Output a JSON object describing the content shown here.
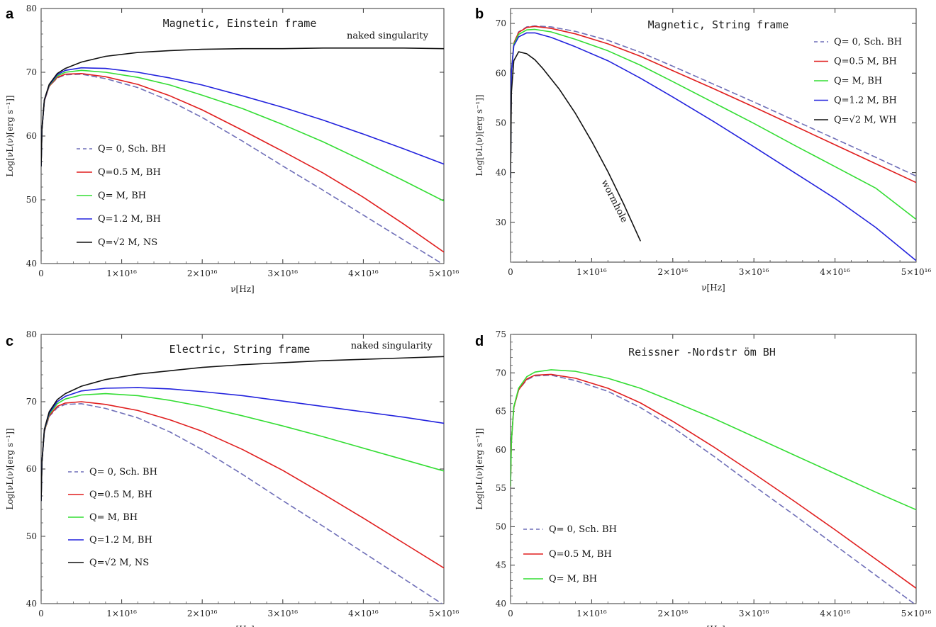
{
  "chart_data": [
    {
      "type": "line",
      "panel_label": "a",
      "title": "Magnetic, Einstein frame",
      "xlabel": "ν[Hz]",
      "ylabel": "Log[νL(ν)[erg s⁻¹]]",
      "xlim": [
        0,
        5e+16
      ],
      "ylim": [
        40,
        80
      ],
      "x_ticks": [
        0,
        1e+16,
        2e+16,
        3e+16,
        4e+16,
        5e+16
      ],
      "x_tick_labels": [
        "0",
        "1×10¹⁶",
        "2×10¹⁶",
        "3×10¹⁶",
        "4×10¹⁶",
        "5×10¹⁶"
      ],
      "y_ticks": [
        40,
        50,
        60,
        70,
        80
      ],
      "y_tick_labels": [
        "40",
        "50",
        "60",
        "70",
        "80"
      ],
      "legend_position": "lower-left",
      "annotations": [
        {
          "text": "naked singularity",
          "x": 4.3e+16,
          "y": 75.3,
          "rotate": 0
        }
      ],
      "series": [
        {
          "name": "Q= 0, Sch. BH",
          "color": "#6f6fb8",
          "dash": true,
          "x": [
            0,
            100000000000000.0,
            400000000000000.0,
            1000000000000000.0,
            2000000000000000.0,
            3000000000000000.0,
            5000000000000000.0,
            8000000000000000.0,
            1.2e+16,
            1.6e+16,
            2e+16,
            2.5e+16,
            3e+16,
            3.5e+16,
            4e+16,
            4.5e+16,
            5e+16
          ],
          "y": [
            55.3,
            61,
            65.5,
            67.8,
            69.1,
            69.6,
            69.7,
            69.0,
            67.6,
            65.5,
            62.9,
            59.2,
            55.3,
            51.5,
            47.6,
            43.7,
            39.8
          ]
        },
        {
          "name": "Q=0.5 M, BH",
          "color": "#e01e1e",
          "dash": false,
          "x": [
            0,
            100000000000000.0,
            400000000000000.0,
            1000000000000000.0,
            2000000000000000.0,
            3000000000000000.0,
            5000000000000000.0,
            8000000000000000.0,
            1.2e+16,
            1.6e+16,
            2e+16,
            2.5e+16,
            3e+16,
            3.5e+16,
            4e+16,
            4.5e+16,
            5e+16
          ],
          "y": [
            55.3,
            61,
            65.5,
            67.8,
            69.2,
            69.7,
            69.8,
            69.3,
            68.1,
            66.3,
            64.1,
            60.9,
            57.6,
            54.2,
            50.4,
            46.2,
            41.8
          ]
        },
        {
          "name": "Q= M, BH",
          "color": "#33dd33",
          "dash": false,
          "x": [
            0,
            100000000000000.0,
            400000000000000.0,
            1000000000000000.0,
            2000000000000000.0,
            3000000000000000.0,
            5000000000000000.0,
            8000000000000000.0,
            1.2e+16,
            1.6e+16,
            2e+16,
            2.5e+16,
            3e+16,
            3.5e+16,
            4e+16,
            4.5e+16,
            5e+16
          ],
          "y": [
            55.3,
            61,
            65.6,
            67.9,
            69.4,
            70.0,
            70.3,
            70.0,
            69.2,
            68.0,
            66.4,
            64.3,
            61.8,
            59.1,
            56.1,
            53.0,
            49.8
          ]
        },
        {
          "name": "Q=1.2 M, BH",
          "color": "#2222dd",
          "dash": false,
          "x": [
            0,
            100000000000000.0,
            400000000000000.0,
            1000000000000000.0,
            2000000000000000.0,
            3000000000000000.0,
            5000000000000000.0,
            8000000000000000.0,
            1.2e+16,
            1.6e+16,
            2e+16,
            2.5e+16,
            3e+16,
            3.5e+16,
            4e+16,
            4.5e+16,
            5e+16
          ],
          "y": [
            55.3,
            61,
            65.6,
            68.0,
            69.6,
            70.3,
            70.7,
            70.6,
            70.0,
            69.1,
            68.0,
            66.3,
            64.5,
            62.5,
            60.3,
            58.0,
            55.6
          ]
        },
        {
          "name": "Q=√2 M, NS",
          "color": "#111111",
          "dash": false,
          "x": [
            0,
            100000000000000.0,
            400000000000000.0,
            1000000000000000.0,
            2000000000000000.0,
            3000000000000000.0,
            5000000000000000.0,
            8000000000000000.0,
            1.2e+16,
            1.6e+16,
            2e+16,
            2.5e+16,
            3e+16,
            3.5e+16,
            4e+16,
            4.5e+16,
            5e+16
          ],
          "y": [
            55.3,
            61,
            65.7,
            68.1,
            69.8,
            70.6,
            71.6,
            72.5,
            73.1,
            73.4,
            73.6,
            73.7,
            73.7,
            73.8,
            73.8,
            73.8,
            73.7
          ]
        }
      ]
    },
    {
      "type": "line",
      "panel_label": "b",
      "title": "Magnetic, String frame",
      "xlabel": "ν[Hz]",
      "ylabel": "Log[νL(ν)[erg s⁻¹]]",
      "xlim": [
        0,
        5e+16
      ],
      "ylim": [
        22,
        73
      ],
      "x_ticks": [
        0,
        1e+16,
        2e+16,
        3e+16,
        4e+16,
        5e+16
      ],
      "x_tick_labels": [
        "0",
        "1×10¹⁶",
        "2×10¹⁶",
        "3×10¹⁶",
        "4×10¹⁶",
        "5×10¹⁶"
      ],
      "y_ticks": [
        30,
        40,
        50,
        60,
        70
      ],
      "y_tick_labels": [
        "30",
        "40",
        "50",
        "60",
        "70"
      ],
      "legend_position": "top-right",
      "annotations": [
        {
          "text": "wormhole",
          "x": 1.25e+16,
          "y": 34,
          "rotate": 63
        }
      ],
      "series": [
        {
          "name": "Q= 0, Sch. BH",
          "color": "#6f6fb8",
          "dash": true,
          "x": [
            0,
            100000000000000.0,
            400000000000000.0,
            1000000000000000.0,
            2000000000000000.0,
            3000000000000000.0,
            5000000000000000.0,
            8000000000000000.0,
            1.2e+16,
            1.6e+16,
            2e+16,
            2.5e+16,
            3e+16,
            3.5e+16,
            4e+16,
            4.5e+16,
            5e+16
          ],
          "y": [
            39,
            60,
            66,
            68.3,
            69.3,
            69.5,
            69.3,
            68.4,
            66.6,
            64.2,
            61.4,
            57.8,
            54.2,
            50.5,
            46.8,
            43.1,
            39.3
          ]
        },
        {
          "name": "Q=0.5 M, BH",
          "color": "#e01e1e",
          "dash": false,
          "x": [
            0,
            100000000000000.0,
            400000000000000.0,
            1000000000000000.0,
            2000000000000000.0,
            3000000000000000.0,
            5000000000000000.0,
            8000000000000000.0,
            1.2e+16,
            1.6e+16,
            2e+16,
            2.5e+16,
            3e+16,
            3.5e+16,
            4e+16,
            4.5e+16,
            5e+16
          ],
          "y": [
            39,
            60,
            66,
            68.2,
            69.2,
            69.4,
            69.0,
            67.9,
            65.9,
            63.4,
            60.5,
            56.9,
            53.2,
            49.4,
            45.6,
            41.8,
            38.0
          ]
        },
        {
          "name": "Q= M, BH",
          "color": "#33dd33",
          "dash": false,
          "x": [
            0,
            100000000000000.0,
            400000000000000.0,
            1000000000000000.0,
            2000000000000000.0,
            3000000000000000.0,
            5000000000000000.0,
            8000000000000000.0,
            1.2e+16,
            1.6e+16,
            2e+16,
            2.5e+16,
            3e+16,
            3.5e+16,
            4e+16,
            4.5e+16,
            5e+16
          ],
          "y": [
            39,
            60,
            65.8,
            67.8,
            68.7,
            68.8,
            68.3,
            66.8,
            64.5,
            61.6,
            58.3,
            54.1,
            49.9,
            45.5,
            41.2,
            36.9,
            30.6
          ]
        },
        {
          "name": "Q=1.2 M, BH",
          "color": "#2222dd",
          "dash": false,
          "x": [
            0,
            100000000000000.0,
            400000000000000.0,
            1000000000000000.0,
            2000000000000000.0,
            3000000000000000.0,
            5000000000000000.0,
            8000000000000000.0,
            1.2e+16,
            1.6e+16,
            2e+16,
            2.5e+16,
            3e+16,
            3.5e+16,
            4e+16,
            4.5e+16,
            5e+16
          ],
          "y": [
            39,
            60,
            65.5,
            67.3,
            68.1,
            68.1,
            67.2,
            65.3,
            62.5,
            59.0,
            55.2,
            50.3,
            45.2,
            40.0,
            34.8,
            29.0,
            22.3
          ]
        },
        {
          "name": "Q=√2 M, WH",
          "color": "#111111",
          "dash": false,
          "x": [
            0,
            100000000000000.0,
            400000000000000.0,
            1000000000000000.0,
            2000000000000000.0,
            3000000000000000.0,
            4000000000000000.0,
            6000000000000000.0,
            8000000000000000.0,
            1e+16,
            1.2e+16,
            1.4e+16,
            1.6e+16
          ],
          "y": [
            39,
            56,
            62.5,
            64.3,
            63.9,
            62.7,
            60.9,
            56.8,
            51.9,
            46.3,
            40.2,
            33.5,
            26.3
          ]
        }
      ]
    },
    {
      "type": "line",
      "panel_label": "c",
      "title": "Electric, String frame",
      "xlabel": "ν[Hz]",
      "ylabel": "Log[νL(ν)[erg s⁻¹]]",
      "xlim": [
        0,
        5e+16
      ],
      "ylim": [
        40,
        80
      ],
      "x_ticks": [
        0,
        1e+16,
        2e+16,
        3e+16,
        4e+16,
        5e+16
      ],
      "x_tick_labels": [
        "0",
        "1×10¹⁶",
        "2×10¹⁶",
        "3×10¹⁶",
        "4×10¹⁶",
        "5×10¹⁶"
      ],
      "y_ticks": [
        40,
        50,
        60,
        70,
        80
      ],
      "y_tick_labels": [
        "40",
        "50",
        "60",
        "70",
        "80"
      ],
      "legend_position": "lower-left",
      "annotations": [
        {
          "text": "naked singularity",
          "x": 4.35e+16,
          "y": 77.9,
          "rotate": 0
        }
      ],
      "series": [
        {
          "name": "Q= 0, Sch. BH",
          "color": "#6f6fb8",
          "dash": true,
          "x": [
            0,
            100000000000000.0,
            400000000000000.0,
            1000000000000000.0,
            2000000000000000.0,
            3000000000000000.0,
            5000000000000000.0,
            8000000000000000.0,
            1.2e+16,
            1.6e+16,
            2e+16,
            2.5e+16,
            3e+16,
            3.5e+16,
            4e+16,
            4.5e+16,
            5e+16
          ],
          "y": [
            55.3,
            61,
            65.5,
            67.8,
            69.1,
            69.6,
            69.7,
            69.0,
            67.6,
            65.5,
            62.9,
            59.2,
            55.3,
            51.5,
            47.6,
            43.7,
            39.8
          ]
        },
        {
          "name": "Q=0.5 M, BH",
          "color": "#e01e1e",
          "dash": false,
          "x": [
            0,
            100000000000000.0,
            400000000000000.0,
            1000000000000000.0,
            2000000000000000.0,
            3000000000000000.0,
            5000000000000000.0,
            8000000000000000.0,
            1.2e+16,
            1.6e+16,
            2e+16,
            2.5e+16,
            3e+16,
            3.5e+16,
            4e+16,
            4.5e+16,
            5e+16
          ],
          "y": [
            55.3,
            61,
            65.6,
            67.9,
            69.3,
            69.8,
            70.0,
            69.6,
            68.7,
            67.3,
            65.6,
            62.9,
            59.8,
            56.3,
            52.7,
            49.0,
            45.3
          ]
        },
        {
          "name": "Q= M, BH",
          "color": "#33dd33",
          "dash": false,
          "x": [
            0,
            100000000000000.0,
            400000000000000.0,
            1000000000000000.0,
            2000000000000000.0,
            3000000000000000.0,
            5000000000000000.0,
            8000000000000000.0,
            1.2e+16,
            1.6e+16,
            2e+16,
            2.5e+16,
            3e+16,
            3.5e+16,
            4e+16,
            4.5e+16,
            5e+16
          ],
          "y": [
            55.3,
            61,
            65.7,
            68.1,
            69.7,
            70.4,
            71.0,
            71.2,
            70.9,
            70.2,
            69.3,
            67.9,
            66.4,
            64.8,
            63.1,
            61.4,
            59.7
          ]
        },
        {
          "name": "Q=1.2 M, BH",
          "color": "#2222dd",
          "dash": false,
          "x": [
            0,
            100000000000000.0,
            400000000000000.0,
            1000000000000000.0,
            2000000000000000.0,
            3000000000000000.0,
            5000000000000000.0,
            8000000000000000.0,
            1.2e+16,
            1.6e+16,
            2e+16,
            2.5e+16,
            3e+16,
            3.5e+16,
            4e+16,
            4.5e+16,
            5e+16
          ],
          "y": [
            55.3,
            61,
            65.8,
            68.3,
            70.0,
            70.8,
            71.6,
            72.0,
            72.1,
            71.9,
            71.5,
            70.9,
            70.1,
            69.3,
            68.5,
            67.7,
            66.8
          ]
        },
        {
          "name": "Q=√2 M, NS",
          "color": "#111111",
          "dash": false,
          "x": [
            0,
            100000000000000.0,
            400000000000000.0,
            1000000000000000.0,
            2000000000000000.0,
            3000000000000000.0,
            5000000000000000.0,
            8000000000000000.0,
            1.2e+16,
            1.6e+16,
            2e+16,
            2.5e+16,
            3e+16,
            3.5e+16,
            4e+16,
            4.5e+16,
            5e+16
          ],
          "y": [
            55.3,
            61,
            65.9,
            68.5,
            70.3,
            71.2,
            72.3,
            73.3,
            74.1,
            74.6,
            75.1,
            75.5,
            75.8,
            76.1,
            76.3,
            76.5,
            76.7
          ]
        }
      ]
    },
    {
      "type": "line",
      "panel_label": "d",
      "title": "Reissner -Nordstr öm BH",
      "xlabel": "ν[Hz]",
      "ylabel": "Log[νL(ν)[erg s⁻¹]]",
      "xlim": [
        0,
        5e+16
      ],
      "ylim": [
        40,
        75
      ],
      "x_ticks": [
        0,
        1e+16,
        2e+16,
        3e+16,
        4e+16,
        5e+16
      ],
      "x_tick_labels": [
        "0",
        "1×10¹⁶",
        "2×10¹⁶",
        "3×10¹⁶",
        "4×10¹⁶",
        "5×10¹⁶"
      ],
      "y_ticks": [
        40,
        45,
        50,
        55,
        60,
        65,
        70,
        75
      ],
      "y_tick_labels": [
        "40",
        "45",
        "50",
        "55",
        "60",
        "65",
        "70",
        "75"
      ],
      "legend_position": "lower-left",
      "annotations": [],
      "series": [
        {
          "name": "Q= 0, Sch. BH",
          "color": "#6f6fb8",
          "dash": true,
          "x": [
            0,
            100000000000000.0,
            400000000000000.0,
            1000000000000000.0,
            2000000000000000.0,
            3000000000000000.0,
            5000000000000000.0,
            8000000000000000.0,
            1.2e+16,
            1.6e+16,
            2e+16,
            2.5e+16,
            3e+16,
            3.5e+16,
            4e+16,
            4.5e+16,
            5e+16
          ],
          "y": [
            55.3,
            61,
            65.5,
            67.8,
            69.1,
            69.6,
            69.7,
            69.0,
            67.6,
            65.5,
            62.9,
            59.2,
            55.3,
            51.5,
            47.6,
            43.7,
            39.8
          ]
        },
        {
          "name": "Q=0.5 M, BH",
          "color": "#e01e1e",
          "dash": false,
          "x": [
            0,
            100000000000000.0,
            400000000000000.0,
            1000000000000000.0,
            2000000000000000.0,
            3000000000000000.0,
            5000000000000000.0,
            8000000000000000.0,
            1.2e+16,
            1.6e+16,
            2e+16,
            2.5e+16,
            3e+16,
            3.5e+16,
            4e+16,
            4.5e+16,
            5e+16
          ],
          "y": [
            55.3,
            61,
            65.5,
            67.8,
            69.2,
            69.7,
            69.8,
            69.3,
            68.0,
            66.1,
            63.7,
            60.4,
            56.9,
            53.3,
            49.6,
            45.8,
            42.0
          ]
        },
        {
          "name": "Q= M, BH",
          "color": "#33dd33",
          "dash": false,
          "x": [
            0,
            100000000000000.0,
            400000000000000.0,
            1000000000000000.0,
            2000000000000000.0,
            3000000000000000.0,
            5000000000000000.0,
            8000000000000000.0,
            1.2e+16,
            1.6e+16,
            2e+16,
            2.5e+16,
            3e+16,
            3.5e+16,
            4e+16,
            4.5e+16,
            5e+16
          ],
          "y": [
            55.3,
            61,
            65.6,
            68.0,
            69.5,
            70.1,
            70.4,
            70.2,
            69.3,
            68.0,
            66.3,
            64.1,
            61.7,
            59.3,
            56.9,
            54.5,
            52.2
          ]
        }
      ]
    }
  ]
}
